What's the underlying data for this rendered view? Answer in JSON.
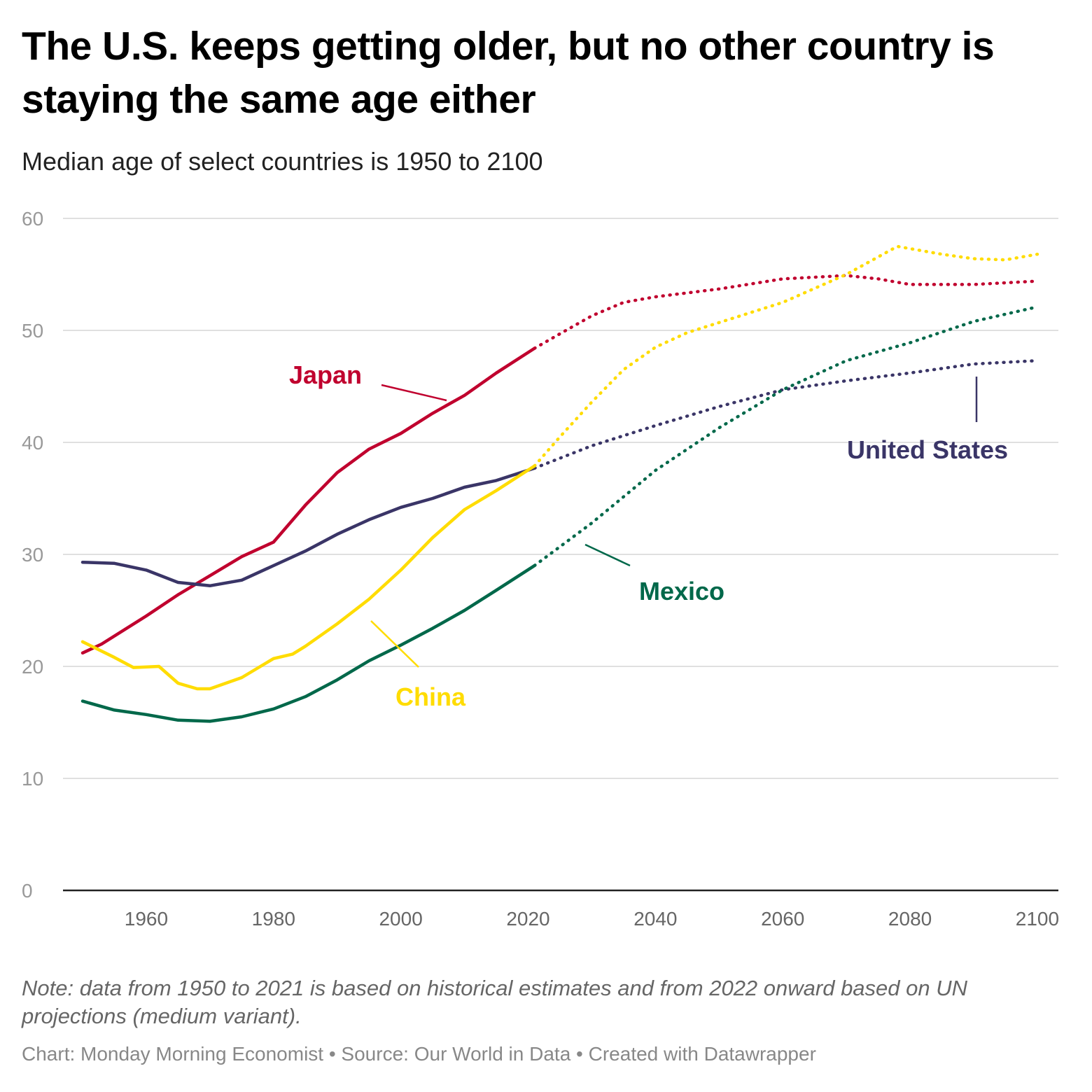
{
  "chart_data": {
    "type": "line",
    "title": "The U.S. keeps getting older, but no other country is staying the same age either",
    "subtitle": "Median age of select countries is 1950 to 2100",
    "xlabel": "",
    "ylabel": "",
    "ylim": [
      0,
      60
    ],
    "xlim": [
      1950,
      2100
    ],
    "yticks": [
      "0",
      "10",
      "20",
      "30",
      "40",
      "50",
      "60"
    ],
    "xticks": [
      "1960",
      "1980",
      "2000",
      "2020",
      "2040",
      "2060",
      "2080",
      "2100"
    ],
    "grid": true,
    "projection_start": 2021,
    "series": [
      {
        "name": "Japan",
        "color": "#c0002e",
        "x": [
          1950,
          1953,
          1960,
          1965,
          1970,
          1975,
          1980,
          1985,
          1990,
          1995,
          2000,
          2005,
          2010,
          2015,
          2021,
          2025,
          2030,
          2035,
          2040,
          2050,
          2060,
          2070,
          2075,
          2080,
          2090,
          2100
        ],
        "values": [
          21.2,
          22,
          24.5,
          26.4,
          28.1,
          29.8,
          31.1,
          34.4,
          37.3,
          39.4,
          40.8,
          42.6,
          44.2,
          46.2,
          48.4,
          49.7,
          51.3,
          52.5,
          53,
          53.7,
          54.6,
          54.9,
          54.6,
          54.1,
          54.1,
          54.4
        ]
      },
      {
        "name": "United States",
        "color": "#3a3567",
        "x": [
          1950,
          1955,
          1960,
          1965,
          1970,
          1975,
          1980,
          1985,
          1990,
          1995,
          2000,
          2005,
          2010,
          2015,
          2021,
          2030,
          2040,
          2050,
          2060,
          2070,
          2080,
          2090,
          2100
        ],
        "values": [
          29.3,
          29.2,
          28.6,
          27.5,
          27.2,
          27.7,
          29,
          30.3,
          31.8,
          33.1,
          34.2,
          35,
          36,
          36.6,
          37.7,
          39.7,
          41.5,
          43.2,
          44.7,
          45.5,
          46.2,
          47,
          47.3
        ]
      },
      {
        "name": "China",
        "color": "#ffdc00",
        "x": [
          1950,
          1955,
          1958,
          1962,
          1965,
          1968,
          1970,
          1975,
          1980,
          1983,
          1985,
          1990,
          1995,
          2000,
          2005,
          2010,
          2015,
          2021,
          2025,
          2030,
          2035,
          2040,
          2045,
          2050,
          2060,
          2070,
          2078,
          2085,
          2090,
          2095,
          2100
        ],
        "values": [
          22.2,
          20.8,
          19.9,
          20,
          18.5,
          18,
          18,
          19,
          20.7,
          21.1,
          21.8,
          23.8,
          26,
          28.6,
          31.5,
          34,
          35.7,
          37.9,
          40.5,
          43.6,
          46.5,
          48.5,
          49.8,
          50.7,
          52.5,
          55,
          57.5,
          56.8,
          56.4,
          56.3,
          56.8
        ]
      },
      {
        "name": "Mexico",
        "color": "#00684a",
        "x": [
          1950,
          1955,
          1960,
          1965,
          1970,
          1975,
          1980,
          1985,
          1990,
          1995,
          2000,
          2005,
          2010,
          2015,
          2021,
          2030,
          2040,
          2050,
          2060,
          2070,
          2080,
          2090,
          2100
        ],
        "values": [
          16.9,
          16.1,
          15.7,
          15.2,
          15.1,
          15.5,
          16.2,
          17.3,
          18.8,
          20.5,
          21.9,
          23.4,
          25,
          26.8,
          29,
          32.8,
          37.5,
          41.3,
          44.7,
          47.3,
          48.9,
          50.8,
          52.1
        ]
      }
    ],
    "annotations": [
      "Japan",
      "United States",
      "Mexico",
      "China"
    ]
  },
  "note": "Note: data from 1950 to 2021 is based on historical estimates and from 2022 onward based on UN projections (medium variant).",
  "footer": "Chart: Monday Morning Economist • Source: Our World in Data • Created with Datawrapper"
}
